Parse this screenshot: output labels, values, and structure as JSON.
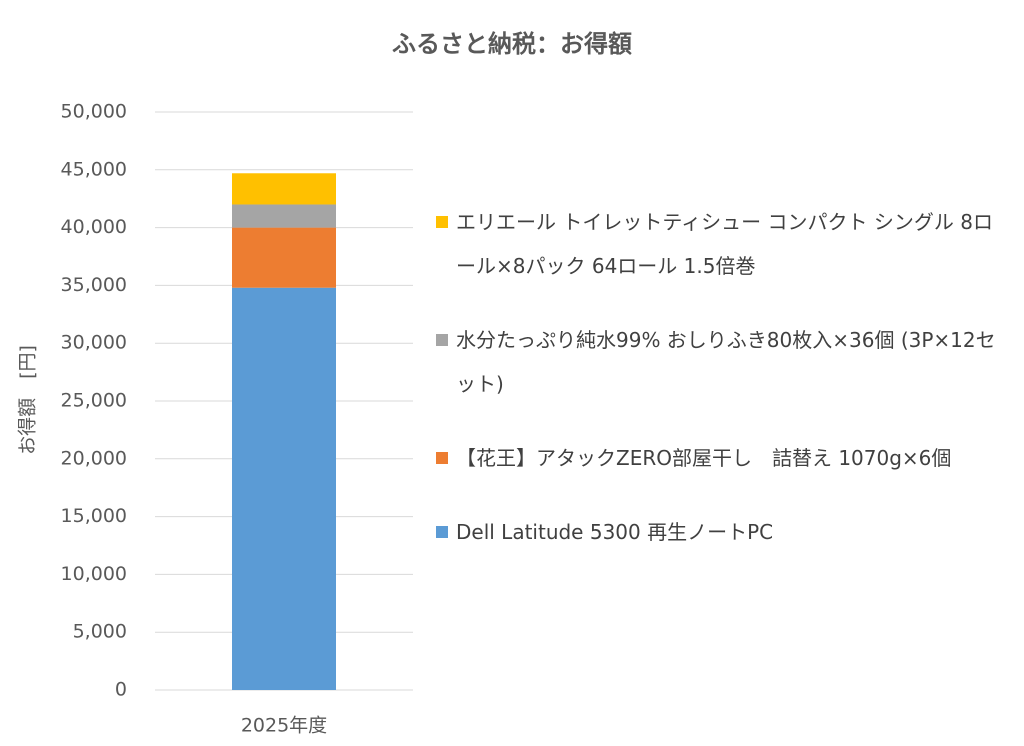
{
  "chart_data": {
    "type": "stacked_bar",
    "title": "ふるさと納税：お得額",
    "y_label": "お得額　[円]",
    "categories": [
      "2025年度"
    ],
    "series": [
      {
        "name": "Dell Latitude 5300 再生ノートPC",
        "color": "#5b9bd5",
        "values": [
          34800
        ]
      },
      {
        "name": "【花王】アタックZERO部屋干し　詰替え 1070g×6個",
        "color": "#ed7d31",
        "values": [
          5200
        ]
      },
      {
        "name": "水分たっぷり純水99% おしりふき80枚入×36個 (3P×12セット)",
        "color": "#a5a5a5",
        "values": [
          2000
        ]
      },
      {
        "name": "エリエール トイレットティシュー コンパクト シングル 8ロール×8パック 64ロール 1.5倍巻",
        "color": "#ffc000",
        "values": [
          2700
        ]
      }
    ],
    "ylim": [
      0,
      50000
    ],
    "yticks": [
      0,
      {
        "value": 5000,
        "label": "5,000"
      },
      {
        "value": 10000,
        "label": "10,000"
      },
      {
        "value": 15000,
        "label": "15,000"
      },
      {
        "value": 20000,
        "label": "20,000"
      },
      {
        "value": 25000,
        "label": "25,000"
      },
      {
        "value": 30000,
        "label": "30,000"
      },
      {
        "value": 35000,
        "label": "35,000"
      },
      {
        "value": 40000,
        "label": "40,000"
      },
      {
        "value": 45000,
        "label": "45,000"
      },
      {
        "value": 50000,
        "label": "50,000"
      }
    ],
    "grid": true,
    "legend": "right"
  }
}
